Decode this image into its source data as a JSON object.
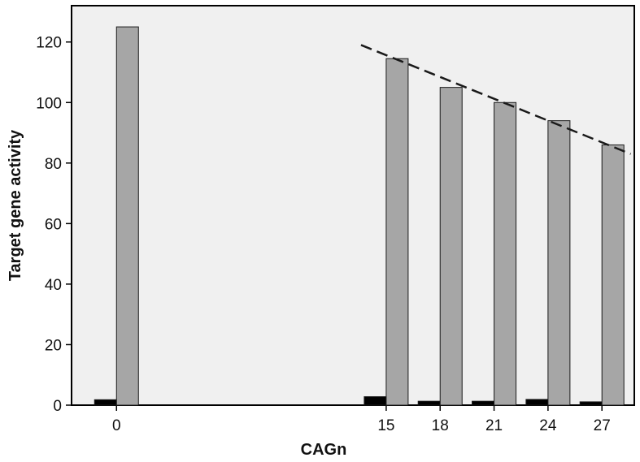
{
  "chart_data": {
    "type": "bar",
    "title": "",
    "xlabel": "CAGn",
    "ylabel": "Target gene activity",
    "x": [
      0,
      15,
      18,
      21,
      24,
      27
    ],
    "x_tick_labels": [
      "0",
      "15",
      "18",
      "21",
      "24",
      "27"
    ],
    "xlim": [
      -2.5,
      28.8
    ],
    "ylim": [
      0,
      132
    ],
    "y_ticks": [
      0,
      20,
      40,
      60,
      80,
      100,
      120
    ],
    "grid": false,
    "series": [
      {
        "values": [
          1.8,
          2.8,
          1.3,
          1.3,
          1.9,
          1.1
        ],
        "color": "#000000"
      },
      {
        "values": [
          125,
          114.5,
          105,
          100,
          94,
          86
        ],
        "color": "#a6a6a6"
      }
    ],
    "trendline": {
      "style": "dashed",
      "color": "#1a1a1a",
      "from": {
        "x": 13.6,
        "y": 119
      },
      "to": {
        "x": 28.6,
        "y": 83
      }
    },
    "plot_background": "#f0f0f0"
  }
}
